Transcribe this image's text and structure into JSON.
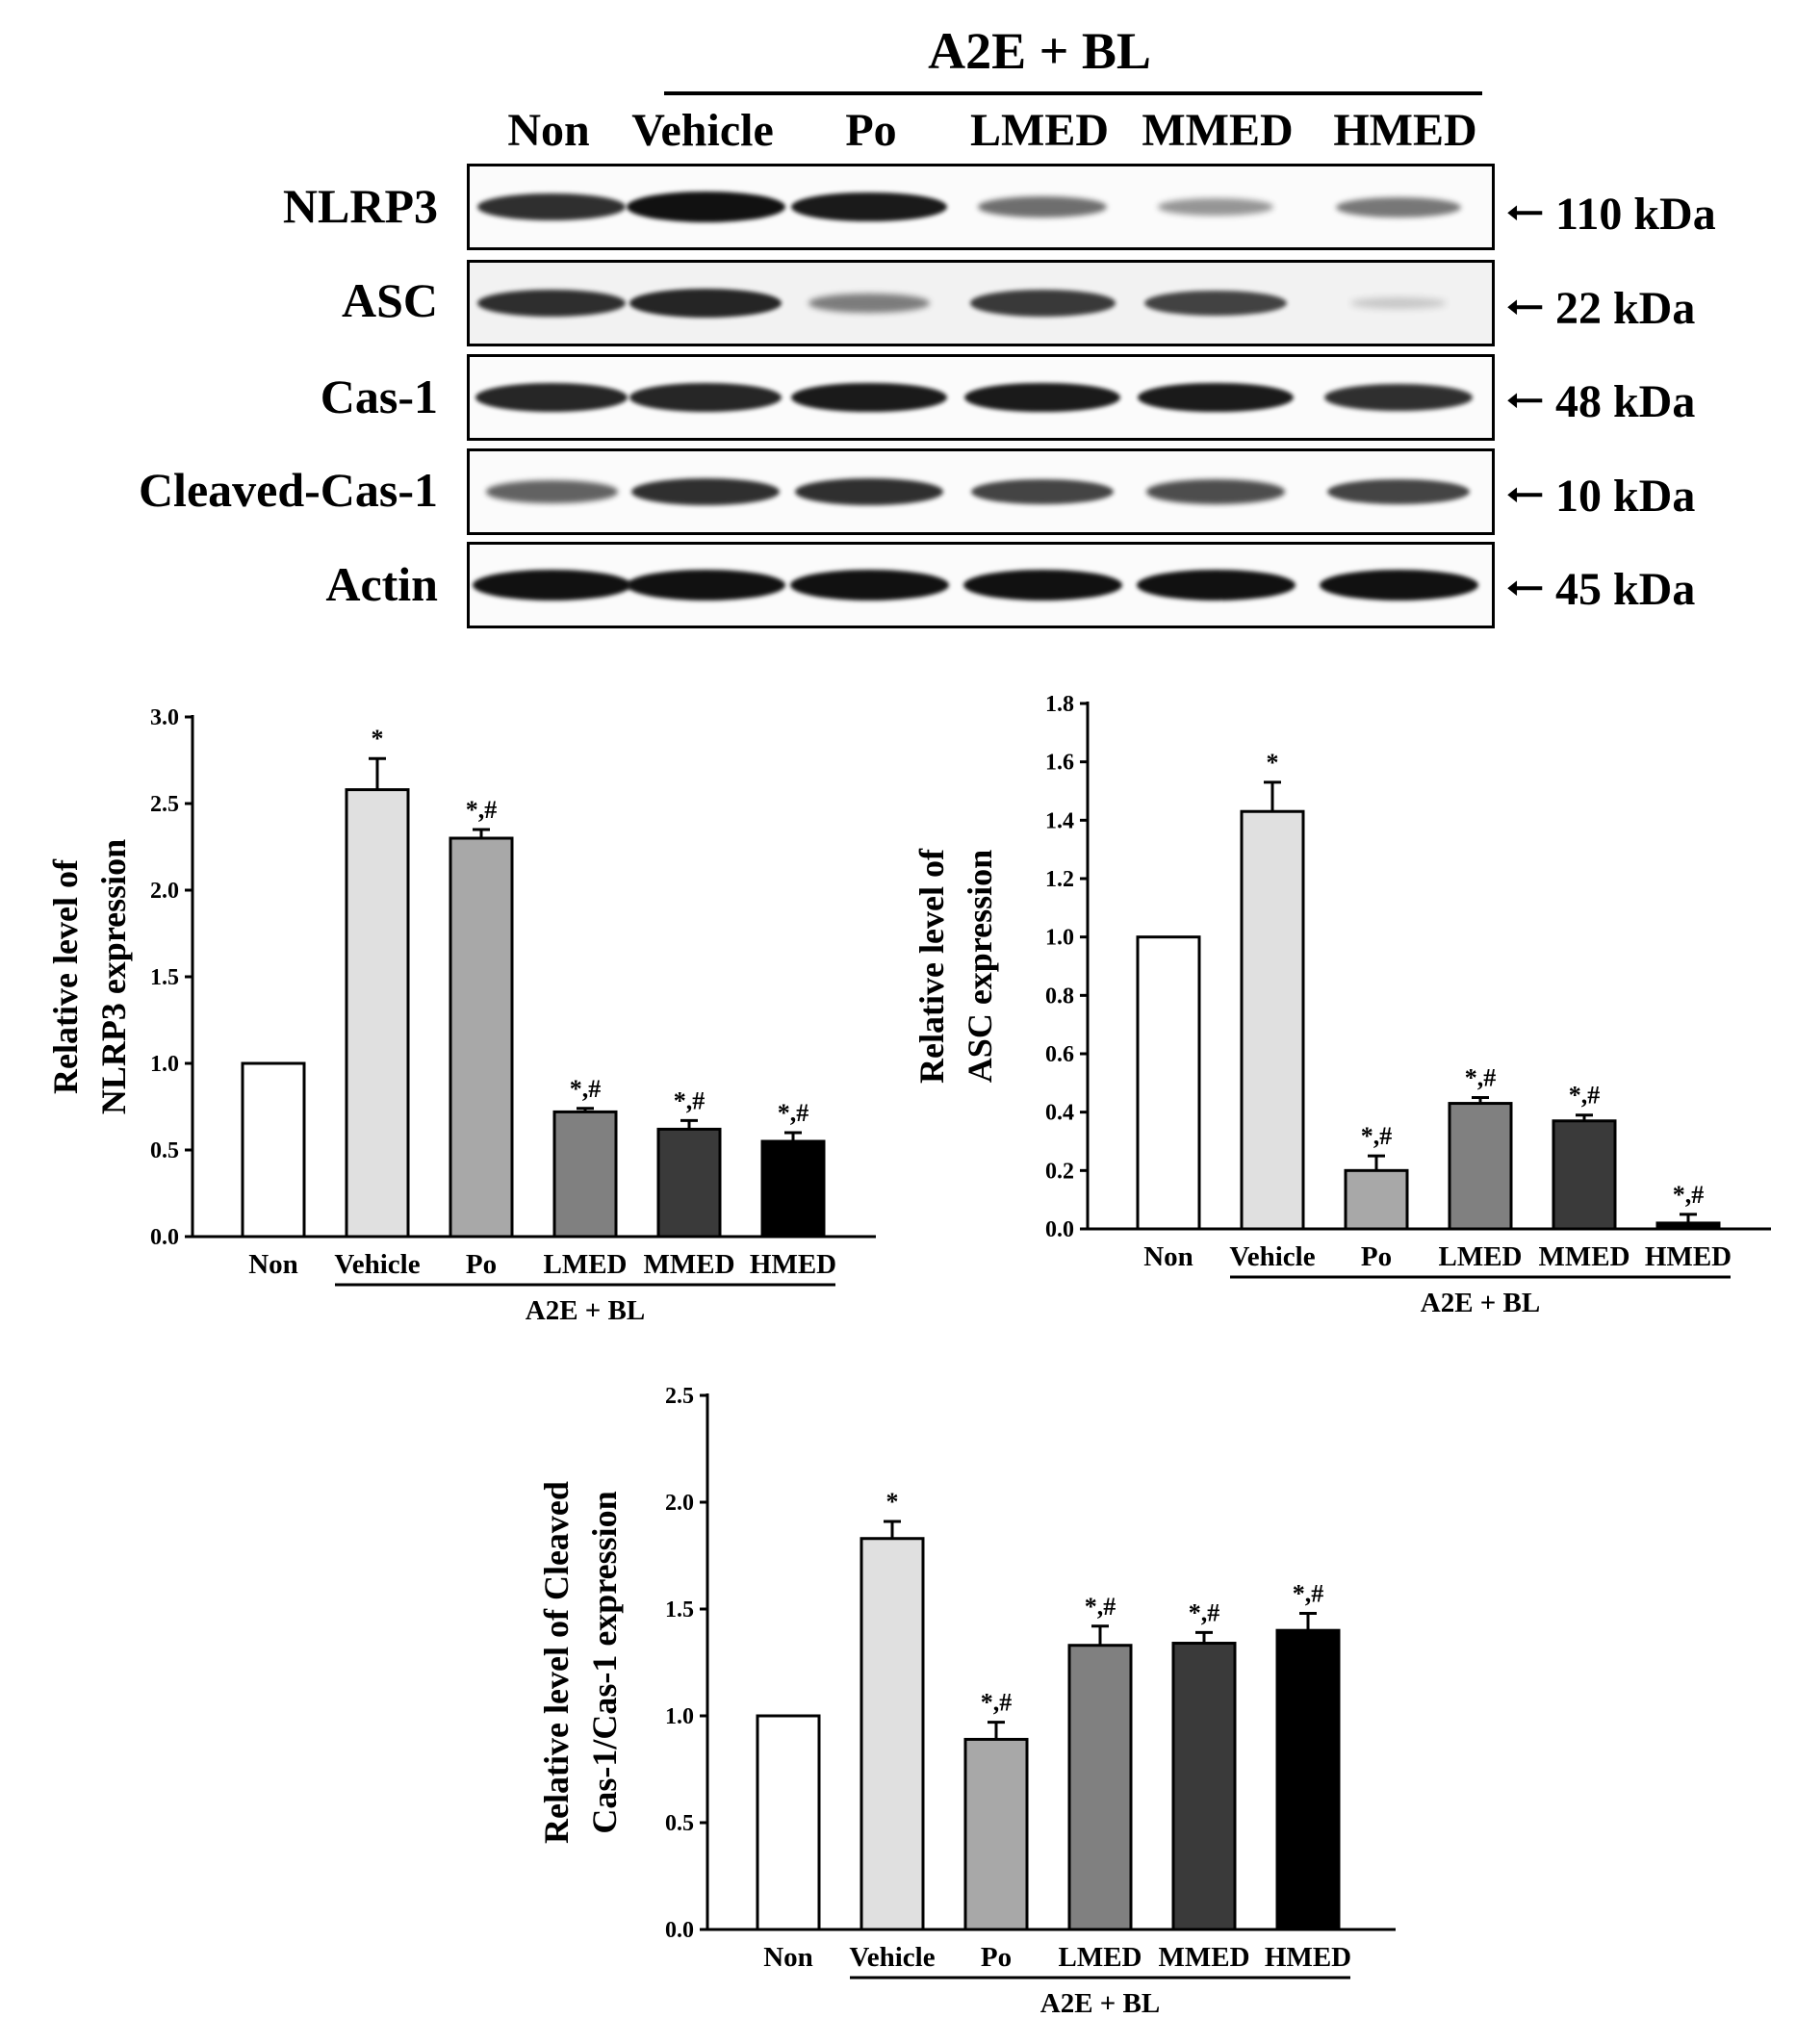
{
  "blot": {
    "treatment_header": "A2E + BL",
    "lanes": [
      "Non",
      "Vehicle",
      "Po",
      "LMED",
      "MMED",
      "HMED"
    ],
    "rows": [
      {
        "label": "NLRP3",
        "size": "110 kDa",
        "intensity": [
          0.85,
          1.0,
          0.95,
          0.55,
          0.35,
          0.5
        ]
      },
      {
        "label": "ASC",
        "size": "22 kDa",
        "intensity": [
          0.85,
          0.9,
          0.45,
          0.8,
          0.75,
          0.08
        ]
      },
      {
        "label": "Cas-1",
        "size": "48 kDa",
        "intensity": [
          0.9,
          0.9,
          0.95,
          0.95,
          0.95,
          0.85
        ]
      },
      {
        "label": "Cleaved-Cas-1",
        "size": "10 kDa",
        "intensity": [
          0.6,
          0.85,
          0.85,
          0.75,
          0.7,
          0.75
        ]
      },
      {
        "label": "Actin",
        "size": "45 kDa",
        "intensity": [
          1.0,
          1.0,
          1.0,
          1.0,
          1.0,
          1.0
        ]
      }
    ]
  },
  "chart_data": [
    {
      "type": "bar",
      "categories": [
        "Non",
        "Vehicle",
        "Po",
        "LMED",
        "MMED",
        "HMED"
      ],
      "values": [
        1.0,
        2.58,
        2.3,
        0.72,
        0.62,
        0.55
      ],
      "errors": [
        0,
        0.18,
        0.05,
        0.02,
        0.05,
        0.05
      ],
      "annotations": [
        "",
        "*",
        "*,#",
        "*,#",
        "*,#",
        "*,#"
      ],
      "bar_colors": [
        "#ffffff",
        "#e0e0e0",
        "#a8a8a8",
        "#808080",
        "#3a3a3a",
        "#000000"
      ],
      "ylabel_lines": [
        "Relative level of",
        "NLRP3 expression"
      ],
      "group_label": "A2E + BL",
      "ylim": [
        0,
        3.0
      ],
      "yticks": [
        "0.0",
        "0.5",
        "1.0",
        "1.5",
        "2.0",
        "2.5",
        "3.0"
      ]
    },
    {
      "type": "bar",
      "categories": [
        "Non",
        "Vehicle",
        "Po",
        "LMED",
        "MMED",
        "HMED"
      ],
      "values": [
        1.0,
        1.43,
        0.2,
        0.43,
        0.37,
        0.02
      ],
      "errors": [
        0,
        0.1,
        0.05,
        0.02,
        0.02,
        0.03
      ],
      "annotations": [
        "",
        "*",
        "*,#",
        "*,#",
        "*,#",
        "*,#"
      ],
      "bar_colors": [
        "#ffffff",
        "#e0e0e0",
        "#a8a8a8",
        "#808080",
        "#3a3a3a",
        "#000000"
      ],
      "ylabel_lines": [
        "Relative level of",
        "ASC expression"
      ],
      "group_label": "A2E + BL",
      "ylim": [
        0,
        1.8
      ],
      "yticks": [
        "0.0",
        "0.2",
        "0.4",
        "0.6",
        "0.8",
        "1.0",
        "1.2",
        "1.4",
        "1.6",
        "1.8"
      ]
    },
    {
      "type": "bar",
      "categories": [
        "Non",
        "Vehicle",
        "Po",
        "LMED",
        "MMED",
        "HMED"
      ],
      "values": [
        1.0,
        1.83,
        0.89,
        1.33,
        1.34,
        1.4
      ],
      "errors": [
        0,
        0.08,
        0.08,
        0.09,
        0.05,
        0.08
      ],
      "annotations": [
        "",
        "*",
        "*,#",
        "*,#",
        "*,#",
        "*,#"
      ],
      "bar_colors": [
        "#ffffff",
        "#e0e0e0",
        "#a8a8a8",
        "#808080",
        "#3a3a3a",
        "#000000"
      ],
      "ylabel_lines": [
        "Relative level of  Cleaved",
        "Cas-1/Cas-1 expression"
      ],
      "group_label": "A2E + BL",
      "ylim": [
        0,
        2.5
      ],
      "yticks": [
        "0.0",
        "0.5",
        "1.0",
        "1.5",
        "2.0",
        "2.5"
      ]
    }
  ]
}
